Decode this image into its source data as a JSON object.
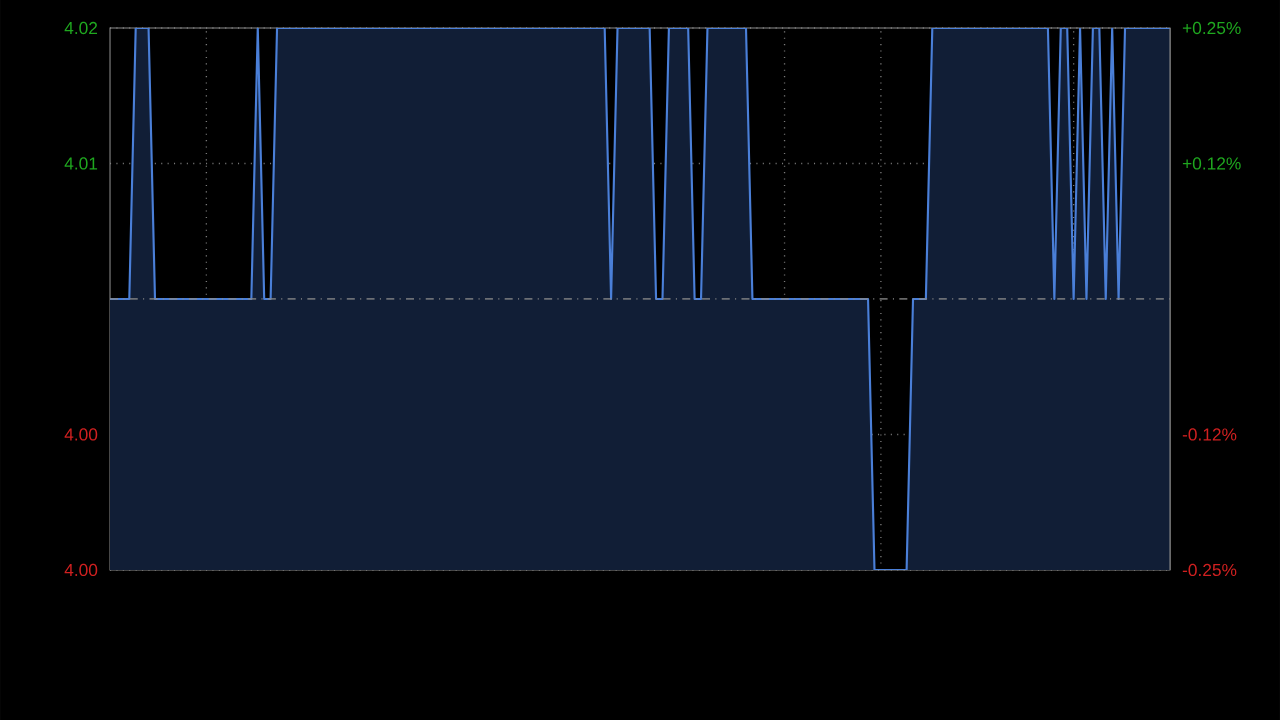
{
  "chart_data": {
    "type": "area",
    "color": "#4a7fd8",
    "categories": [
      null,
      null,
      null,
      null,
      null,
      null,
      null,
      null,
      null,
      null,
      null,
      null,
      null,
      null,
      null,
      null,
      null,
      null,
      null,
      null,
      null,
      null,
      null,
      null,
      null,
      null,
      null,
      null,
      null,
      null,
      null,
      null,
      null,
      null,
      null,
      null,
      null,
      null,
      null,
      null,
      null,
      null,
      null,
      null,
      null,
      null,
      null,
      null,
      null,
      null,
      null,
      null,
      null,
      null,
      null,
      null,
      null,
      null,
      null,
      null,
      null,
      null,
      null,
      null,
      null,
      null,
      null,
      null,
      null,
      null,
      null,
      null,
      null,
      null,
      null,
      null,
      null,
      null,
      null,
      null,
      null,
      null,
      null,
      null,
      null,
      null,
      null,
      null,
      null,
      null,
      null,
      null,
      null,
      null,
      null,
      null,
      null,
      null,
      null,
      null,
      null,
      null,
      null,
      null,
      null,
      null,
      null,
      null,
      null,
      null,
      null,
      null,
      null,
      null,
      null,
      null,
      null,
      null,
      null,
      null,
      null,
      null,
      null,
      null,
      null,
      null,
      null,
      null,
      null,
      null,
      null,
      null,
      null,
      null,
      null,
      null,
      null,
      null,
      null,
      null,
      null,
      null,
      null,
      null,
      null,
      null,
      null,
      null,
      null,
      null,
      null,
      null,
      null,
      null,
      null,
      null,
      null,
      null,
      null,
      null,
      null,
      null,
      null,
      null,
      null,
      null
    ],
    "values": [
      4.01,
      4.01,
      4.01,
      4.01,
      4.02,
      4.02,
      4.02,
      4.01,
      4.01,
      4.01,
      4.01,
      4.01,
      4.01,
      4.01,
      4.01,
      4.01,
      4.01,
      4.01,
      4.01,
      4.01,
      4.01,
      4.01,
      4.01,
      4.02,
      4.01,
      4.01,
      4.02,
      4.02,
      4.02,
      4.02,
      4.02,
      4.02,
      4.02,
      4.02,
      4.02,
      4.02,
      4.02,
      4.02,
      4.02,
      4.02,
      4.02,
      4.02,
      4.02,
      4.02,
      4.02,
      4.02,
      4.02,
      4.02,
      4.02,
      4.02,
      4.02,
      4.02,
      4.02,
      4.02,
      4.02,
      4.02,
      4.02,
      4.02,
      4.02,
      4.02,
      4.02,
      4.02,
      4.02,
      4.02,
      4.02,
      4.02,
      4.02,
      4.02,
      4.02,
      4.02,
      4.02,
      4.02,
      4.02,
      4.02,
      4.02,
      4.02,
      4.02,
      4.02,
      4.01,
      4.02,
      4.02,
      4.02,
      4.02,
      4.02,
      4.02,
      4.01,
      4.01,
      4.02,
      4.02,
      4.02,
      4.02,
      4.01,
      4.01,
      4.02,
      4.02,
      4.02,
      4.02,
      4.02,
      4.02,
      4.02,
      4.01,
      4.01,
      4.01,
      4.01,
      4.01,
      4.01,
      4.01,
      4.01,
      4.01,
      4.01,
      4.01,
      4.01,
      4.01,
      4.01,
      4.01,
      4.01,
      4.01,
      4.01,
      4.01,
      4.0,
      4.0,
      4.0,
      4.0,
      4.0,
      4.0,
      4.01,
      4.01,
      4.01,
      4.02,
      4.02,
      4.02,
      4.02,
      4.02,
      4.02,
      4.02,
      4.02,
      4.02,
      4.02,
      4.02,
      4.02,
      4.02,
      4.02,
      4.02,
      4.02,
      4.02,
      4.02,
      4.02,
      4.01,
      4.02,
      4.02,
      4.01,
      4.02,
      4.01,
      4.02,
      4.02,
      4.01,
      4.02,
      4.01,
      4.02,
      4.02,
      4.02,
      4.02,
      4.02,
      4.02,
      4.02,
      4.02
    ],
    "ylim": [
      4.0,
      4.02
    ],
    "yticks": [
      {
        "value": 4.02,
        "label": "4.02"
      },
      {
        "value": 4.015,
        "label": "4.01"
      },
      {
        "value": 4.005,
        "label": "4.00"
      },
      {
        "value": 4.0,
        "label": "4.00"
      }
    ],
    "y2lim": [
      -0.25,
      0.25
    ],
    "y2ticks": [
      {
        "value": 0.25,
        "label": "+0.25%"
      },
      {
        "value": 0.125,
        "label": "+0.12%"
      },
      {
        "value": -0.125,
        "label": "-0.12%"
      },
      {
        "value": -0.25,
        "label": "-0.25%"
      }
    ],
    "ref_lines": [
      {
        "axis": "y",
        "value": 4.01,
        "color": "#8a8a8a",
        "line_style": "dashed"
      }
    ],
    "grid": true,
    "tick_labels": "y"
  }
}
